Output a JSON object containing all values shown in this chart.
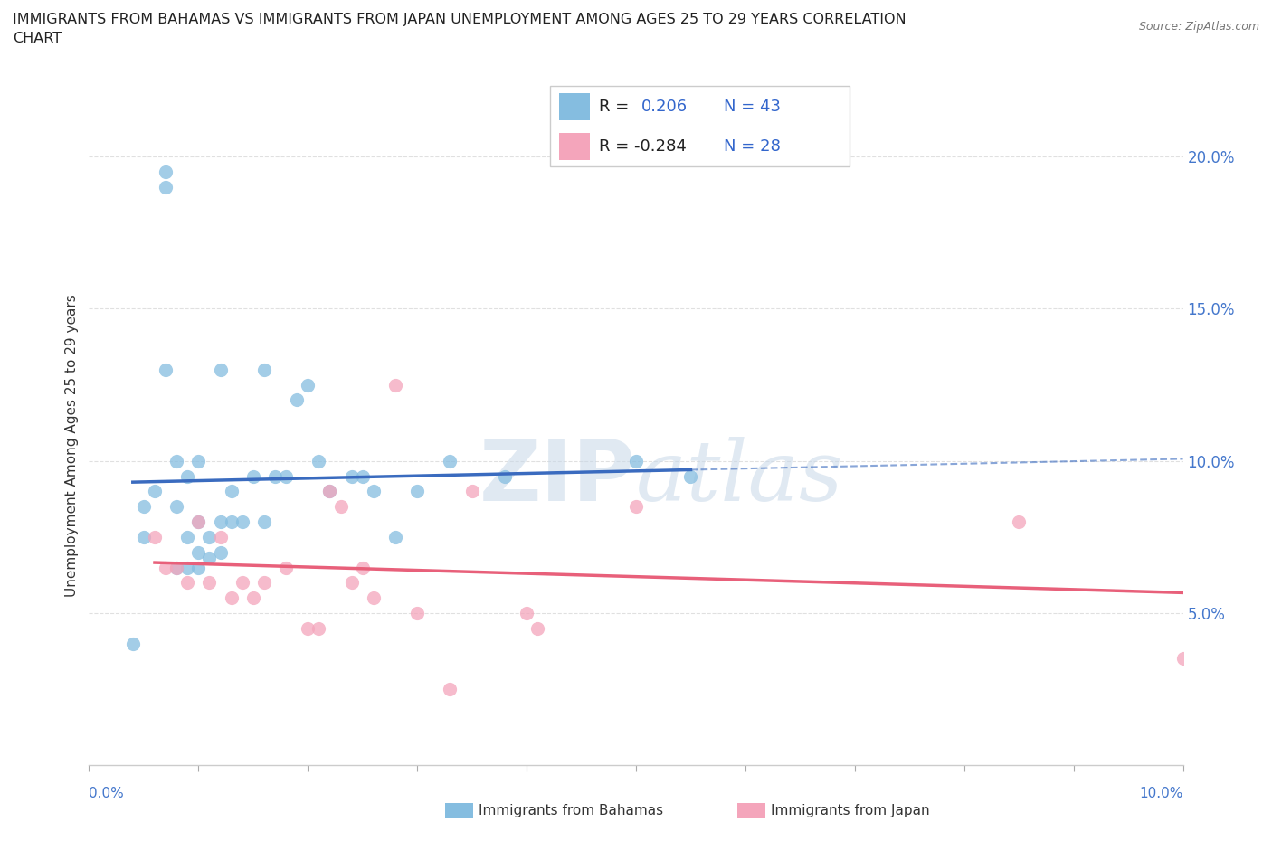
{
  "title_line1": "IMMIGRANTS FROM BAHAMAS VS IMMIGRANTS FROM JAPAN UNEMPLOYMENT AMONG AGES 25 TO 29 YEARS CORRELATION",
  "title_line2": "CHART",
  "source_text": "Source: ZipAtlas.com",
  "ylabel": "Unemployment Among Ages 25 to 29 years",
  "xlim": [
    0.0,
    0.1
  ],
  "ylim": [
    0.0,
    0.21
  ],
  "yticks": [
    0.05,
    0.1,
    0.15,
    0.2
  ],
  "ytick_labels": [
    "5.0%",
    "10.0%",
    "15.0%",
    "20.0%"
  ],
  "color_bahamas": "#85bde0",
  "color_japan": "#f4a5bb",
  "color_trendline1": "#3a6bbf",
  "color_trendline2": "#e8607a",
  "bahamas_x": [
    0.004,
    0.005,
    0.005,
    0.006,
    0.007,
    0.007,
    0.007,
    0.008,
    0.008,
    0.008,
    0.009,
    0.009,
    0.009,
    0.01,
    0.01,
    0.01,
    0.01,
    0.011,
    0.011,
    0.012,
    0.012,
    0.012,
    0.013,
    0.013,
    0.014,
    0.015,
    0.016,
    0.016,
    0.017,
    0.018,
    0.019,
    0.02,
    0.021,
    0.022,
    0.024,
    0.025,
    0.026,
    0.028,
    0.03,
    0.033,
    0.038,
    0.05,
    0.055
  ],
  "bahamas_y": [
    0.04,
    0.075,
    0.085,
    0.09,
    0.19,
    0.195,
    0.13,
    0.065,
    0.085,
    0.1,
    0.065,
    0.075,
    0.095,
    0.065,
    0.07,
    0.08,
    0.1,
    0.068,
    0.075,
    0.07,
    0.08,
    0.13,
    0.08,
    0.09,
    0.08,
    0.095,
    0.08,
    0.13,
    0.095,
    0.095,
    0.12,
    0.125,
    0.1,
    0.09,
    0.095,
    0.095,
    0.09,
    0.075,
    0.09,
    0.1,
    0.095,
    0.1,
    0.095
  ],
  "japan_x": [
    0.006,
    0.007,
    0.008,
    0.009,
    0.01,
    0.011,
    0.012,
    0.013,
    0.014,
    0.015,
    0.016,
    0.018,
    0.02,
    0.021,
    0.022,
    0.023,
    0.024,
    0.025,
    0.026,
    0.028,
    0.03,
    0.033,
    0.035,
    0.04,
    0.041,
    0.05,
    0.085,
    0.1
  ],
  "japan_y": [
    0.075,
    0.065,
    0.065,
    0.06,
    0.08,
    0.06,
    0.075,
    0.055,
    0.06,
    0.055,
    0.06,
    0.065,
    0.045,
    0.045,
    0.09,
    0.085,
    0.06,
    0.065,
    0.055,
    0.125,
    0.05,
    0.025,
    0.09,
    0.05,
    0.045,
    0.085,
    0.08,
    0.035
  ],
  "background_color": "#ffffff",
  "grid_color": "#e0e0e0"
}
